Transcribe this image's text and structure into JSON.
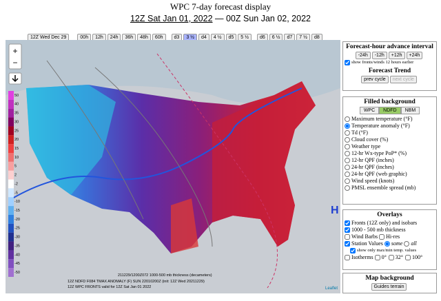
{
  "header": {
    "title": "WPC 7-day forecast display",
    "start": "12Z Sat Jan 01, 2022",
    "separator": "—",
    "end": "00Z Sun Jan 02, 2022"
  },
  "toolbar": {
    "cycle": "12Z Wed Dec 29",
    "buttons": [
      "00h",
      "12h",
      "24h",
      "36h",
      "48h",
      "60h",
      "d3",
      "3 ½",
      "d4",
      "4 ½",
      "d5",
      "5 ½",
      "d6",
      "6 ½",
      "d7",
      "7 ½",
      "d8"
    ]
  },
  "map": {
    "legend": [
      "50",
      "40",
      "35",
      "30",
      "25",
      "20",
      "15",
      "10",
      "5",
      "2",
      "-2",
      "-5",
      "-10",
      "-15",
      "-20",
      "-25",
      "-30",
      "-35",
      "-40",
      "-45",
      "-50"
    ],
    "header_line": "211229/1200Z072 1000-500 mb thickness (decameters)",
    "footer": [
      "12Z NDFD F084 TMAX ANOMALY (F)  SUN 22010200Z  (init: 12Z Wed 20211229)",
      "12Z WPC FRONTS valid for 12Z Sat Jan 01 2022"
    ],
    "attribution": "Leaflet",
    "high": "H",
    "zoom_in": "+",
    "zoom_out": "−"
  },
  "panel": {
    "advance": {
      "title": "Forecast-hour advance interval",
      "buttons": [
        "-24h",
        "-12h",
        "+12h",
        "+24h"
      ],
      "checkbox": "show fronts/winds 12 hours earlier",
      "trend_title": "Forecast Trend",
      "trend_buttons": [
        "prev cycle",
        "next cycle"
      ]
    },
    "filled": {
      "title": "Filled background",
      "tabs": [
        "WPC",
        "NDFD",
        "NBM"
      ],
      "options": [
        "Maximum temperature (°F)",
        "Temperature anomaly (°F)",
        "Td (°F)",
        "Cloud cover (%)",
        "Weather type",
        "12-hr Wx-type PoP* (%)",
        "12-hr QPF (inches)",
        "24-hr QPF (inches)",
        "24-hr QPF (web graphic)",
        "Wind speed (knots)",
        "PMSL ensemble spread (mb)"
      ]
    },
    "overlays": {
      "title": "Overlays",
      "fronts": "Fronts (12Z only) and isobars",
      "thickness": "1000 - 500 mb thickness",
      "barbs": "Wind Barbs",
      "hires": "Hi-res",
      "stations": "Station Values",
      "some": "some",
      "all": "all",
      "maxmin": "show only max/min temp. values",
      "isotherms": "Isotherms",
      "iso": [
        "0°",
        "32°",
        "100°"
      ]
    },
    "background": {
      "title": "Map background",
      "select": "Guides terrain"
    }
  }
}
